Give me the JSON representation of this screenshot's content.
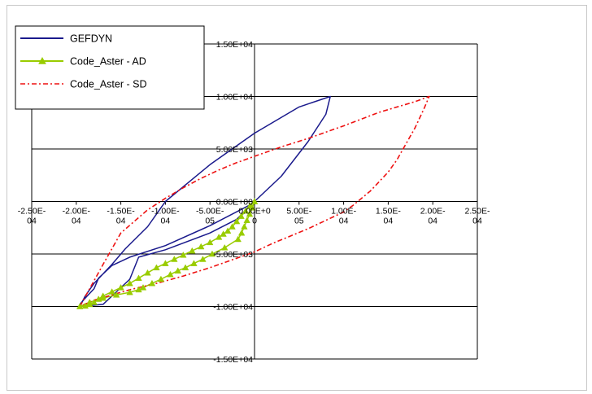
{
  "chart_data": {
    "type": "line",
    "title": "",
    "xlabel": "",
    "ylabel": "",
    "xlim": [
      -0.00025,
      0.00025
    ],
    "ylim": [
      -15000,
      15000
    ],
    "grid": "horizontal",
    "legend_position": "top-left",
    "x_tick_labels": [
      {
        "value": -0.00025,
        "label": [
          "-2.50E-",
          "04"
        ]
      },
      {
        "value": -0.0002,
        "label": [
          "-2.00E-",
          "04"
        ]
      },
      {
        "value": -0.00015,
        "label": [
          "-1.50E-",
          "04"
        ]
      },
      {
        "value": -0.0001,
        "label": [
          "-1.00E-",
          "04"
        ]
      },
      {
        "value": -5e-05,
        "label": [
          "-5.00E-",
          "05"
        ]
      },
      {
        "value": 0,
        "label": [
          "0.00E+0",
          "0"
        ]
      },
      {
        "value": 5e-05,
        "label": [
          "5.00E-",
          "05"
        ]
      },
      {
        "value": 0.0001,
        "label": [
          "1.00E-",
          "04"
        ]
      },
      {
        "value": 0.00015,
        "label": [
          "1.50E-",
          "04"
        ]
      },
      {
        "value": 0.0002,
        "label": [
          "2.00E-",
          "04"
        ]
      },
      {
        "value": 0.00025,
        "label": [
          "2.50E-",
          "04"
        ]
      }
    ],
    "y_tick_labels": [
      {
        "value": 15000,
        "label": "1.50E+04"
      },
      {
        "value": 10000,
        "label": "1.00E+04"
      },
      {
        "value": 5000,
        "label": "5.00E+03"
      },
      {
        "value": 0,
        "label": "0.00E+00"
      },
      {
        "value": -5000,
        "label": "-5.00E+03"
      },
      {
        "value": -10000,
        "label": "-1.00E+04"
      },
      {
        "value": -15000,
        "label": "-1.50E+04"
      }
    ],
    "series": [
      {
        "name": "GEFDYN",
        "color": "#1a1a8c",
        "dash": "solid",
        "marker": "none",
        "x": [
          0,
          -5e-05,
          -0.0001,
          -0.00014,
          -0.00016,
          -0.000175,
          -0.00018,
          -0.00019,
          -0.000196,
          -0.000196,
          -0.00017,
          -0.00014,
          -0.00013,
          -0.0001,
          -5e-05,
          -2e-05,
          0,
          3e-05,
          6e-05,
          8e-05,
          8.5e-05,
          5e-05,
          0,
          -5e-05,
          -0.0001,
          -0.00012,
          -0.000145,
          -0.00016,
          -0.00018,
          -0.00019,
          -0.000196
        ],
        "y": [
          -100,
          -2300,
          -4200,
          -5300,
          -6100,
          -7300,
          -8300,
          -9200,
          -9800,
          -10000,
          -9800,
          -7400,
          -5300,
          -4600,
          -3000,
          -1700,
          0,
          2400,
          5700,
          8300,
          10000,
          9000,
          6500,
          3500,
          0,
          -2400,
          -4500,
          -6000,
          -7800,
          -9000,
          -10000
        ]
      },
      {
        "name": "Code_Aster - AD",
        "color": "#99cc00",
        "dash": "solid",
        "marker": "triangle",
        "x": [
          0,
          -5e-06,
          -1e-05,
          -1.5e-05,
          -2e-05,
          -2.5e-05,
          -3e-05,
          -3.5e-05,
          -4e-05,
          -5e-05,
          -6e-05,
          -7e-05,
          -8e-05,
          -9e-05,
          -0.0001,
          -0.00011,
          -0.00012,
          -0.00013,
          -0.00014,
          -0.00015,
          -0.00016,
          -0.00017,
          -0.000175,
          -0.00018,
          -0.000185,
          -0.00019,
          -0.000196,
          -0.000185,
          -0.00017,
          -0.000155,
          -0.00014,
          -0.00013,
          -0.000125,
          -0.000115,
          -0.000105,
          -9.45e-05,
          -8.6e-05,
          -7.75e-05,
          -6.8e-05,
          -5.8e-05,
          -4.75e-05,
          -3.35e-05,
          -1.85e-05,
          -1.45e-05,
          -1.15e-05,
          -8.5e-06,
          -5.5e-06,
          -2.5e-06,
          0
        ],
        "y": [
          0,
          -400,
          -900,
          -1400,
          -1900,
          -2400,
          -2800,
          -3100,
          -3400,
          -3900,
          -4300,
          -4700,
          -5100,
          -5500,
          -5900,
          -6300,
          -6800,
          -7300,
          -7800,
          -8200,
          -8600,
          -9000,
          -9300,
          -9600,
          -9800,
          -9950,
          -10000,
          -9600,
          -9200,
          -8900,
          -8650,
          -8400,
          -8200,
          -7800,
          -7400,
          -6950,
          -6600,
          -6300,
          -5900,
          -5500,
          -5000,
          -4400,
          -3600,
          -3000,
          -2400,
          -1800,
          -1200,
          -600,
          0
        ]
      },
      {
        "name": "Code_Aster - SD",
        "color": "#ee1111",
        "dash": "dashdot",
        "marker": "none",
        "x": [
          -0.000196,
          -0.00017,
          -0.00015,
          -0.00012,
          -0.0001,
          -8e-05,
          -6e-05,
          -4e-05,
          -2e-05,
          0,
          3e-05,
          6e-05,
          0.0001,
          0.00014,
          0.00018,
          0.000196,
          0.00019,
          0.00018,
          0.00017,
          0.00016,
          0.00015,
          0.00013,
          0.00011,
          0.0001,
          8e-05,
          6e-05,
          4e-05,
          2e-05,
          0,
          -2e-05,
          -5e-05,
          -8e-05,
          -0.00011,
          -0.00014,
          -0.00016,
          -0.00018,
          -0.000196
        ],
        "y": [
          -10000,
          -6000,
          -3000,
          -800,
          300,
          1300,
          2200,
          3000,
          3700,
          4300,
          5200,
          6000,
          7200,
          8500,
          9500,
          10000,
          8800,
          7000,
          5500,
          4000,
          2800,
          1000,
          -400,
          -1000,
          -1800,
          -2600,
          -3300,
          -4000,
          -4800,
          -5400,
          -6300,
          -7100,
          -7800,
          -8400,
          -8900,
          -9400,
          -10000
        ]
      }
    ]
  }
}
